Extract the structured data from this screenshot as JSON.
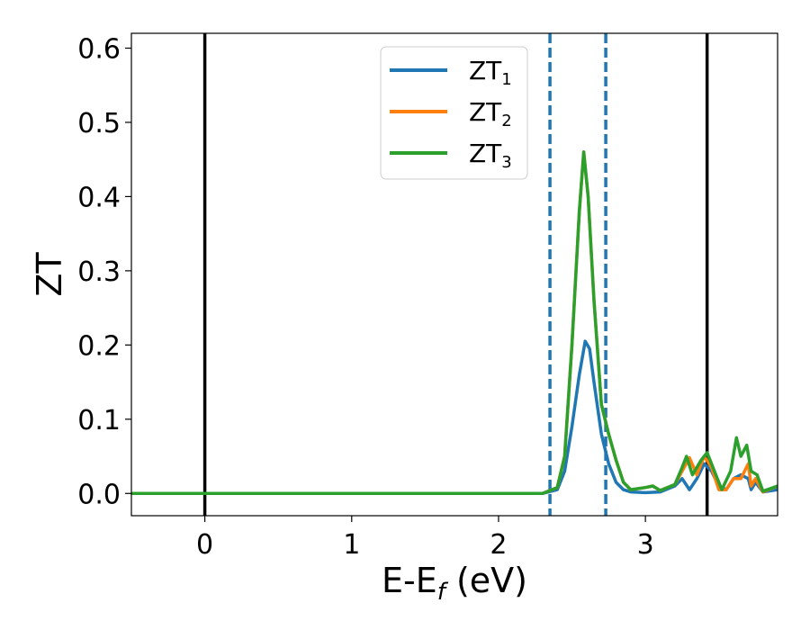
{
  "chart_data": {
    "type": "line",
    "xlabel": "E-E",
    "xlabel_subscript": "f",
    "xlabel_unit": "(eV)",
    "ylabel": "ZT",
    "xlim": [
      -0.5,
      3.9
    ],
    "ylim": [
      -0.03,
      0.62
    ],
    "xticks": [
      0,
      1,
      2,
      3
    ],
    "yticks": [
      0.0,
      0.1,
      0.2,
      0.3,
      0.4,
      0.5,
      0.6
    ],
    "ytick_labels": [
      "0.0",
      "0.1",
      "0.2",
      "0.3",
      "0.4",
      "0.5",
      "0.6"
    ],
    "legend_position": "top-center",
    "vertical_lines": [
      {
        "x": 0.0,
        "style": "solid",
        "color": "#000000"
      },
      {
        "x": 3.42,
        "style": "solid",
        "color": "#000000"
      },
      {
        "x": 2.35,
        "style": "dashed",
        "color": "#1f77b4"
      },
      {
        "x": 2.73,
        "style": "dashed",
        "color": "#1f77b4"
      }
    ],
    "series": [
      {
        "name": "ZT",
        "subscript": "1",
        "color": "#1f77b4",
        "points": [
          [
            -0.5,
            0
          ],
          [
            2.3,
            0
          ],
          [
            2.4,
            0.005
          ],
          [
            2.45,
            0.03
          ],
          [
            2.5,
            0.09
          ],
          [
            2.55,
            0.16
          ],
          [
            2.59,
            0.205
          ],
          [
            2.62,
            0.195
          ],
          [
            2.65,
            0.15
          ],
          [
            2.7,
            0.08
          ],
          [
            2.75,
            0.04
          ],
          [
            2.8,
            0.015
          ],
          [
            2.85,
            0.005
          ],
          [
            2.9,
            0.002
          ],
          [
            3.0,
            0.001
          ],
          [
            3.1,
            0.002
          ],
          [
            3.2,
            0.01
          ],
          [
            3.25,
            0.02
          ],
          [
            3.3,
            0.005
          ],
          [
            3.35,
            0.02
          ],
          [
            3.4,
            0.04
          ],
          [
            3.45,
            0.03
          ],
          [
            3.5,
            0.01
          ],
          [
            3.55,
            0.005
          ],
          [
            3.6,
            0.02
          ],
          [
            3.65,
            0.025
          ],
          [
            3.7,
            0.02
          ],
          [
            3.72,
            0.005
          ],
          [
            3.75,
            0.015
          ],
          [
            3.8,
            0.002
          ],
          [
            3.9,
            0.005
          ]
        ]
      },
      {
        "name": "ZT",
        "subscript": "2",
        "color": "#ff7f0e",
        "points": [
          [
            -0.5,
            0
          ],
          [
            2.3,
            0
          ],
          [
            2.4,
            0.008
          ],
          [
            2.45,
            0.05
          ],
          [
            2.5,
            0.2
          ],
          [
            2.55,
            0.38
          ],
          [
            2.58,
            0.46
          ],
          [
            2.61,
            0.4
          ],
          [
            2.65,
            0.26
          ],
          [
            2.7,
            0.12
          ],
          [
            2.75,
            0.08
          ],
          [
            2.8,
            0.045
          ],
          [
            2.85,
            0.015
          ],
          [
            2.9,
            0.005
          ],
          [
            3.0,
            0.008
          ],
          [
            3.05,
            0.01
          ],
          [
            3.1,
            0.004
          ],
          [
            3.2,
            0.012
          ],
          [
            3.25,
            0.03
          ],
          [
            3.3,
            0.048
          ],
          [
            3.35,
            0.025
          ],
          [
            3.4,
            0.05
          ],
          [
            3.45,
            0.035
          ],
          [
            3.5,
            0.005
          ],
          [
            3.55,
            0.005
          ],
          [
            3.6,
            0.02
          ],
          [
            3.65,
            0.02
          ],
          [
            3.7,
            0.04
          ],
          [
            3.72,
            0.01
          ],
          [
            3.75,
            0.02
          ],
          [
            3.8,
            0.002
          ],
          [
            3.9,
            0.01
          ]
        ]
      },
      {
        "name": "ZT",
        "subscript": "3",
        "color": "#2ca02c",
        "points": [
          [
            -0.5,
            0
          ],
          [
            2.3,
            0
          ],
          [
            2.4,
            0.008
          ],
          [
            2.45,
            0.05
          ],
          [
            2.5,
            0.2
          ],
          [
            2.55,
            0.38
          ],
          [
            2.58,
            0.46
          ],
          [
            2.61,
            0.4
          ],
          [
            2.65,
            0.26
          ],
          [
            2.7,
            0.12
          ],
          [
            2.75,
            0.08
          ],
          [
            2.8,
            0.045
          ],
          [
            2.85,
            0.015
          ],
          [
            2.9,
            0.005
          ],
          [
            3.0,
            0.008
          ],
          [
            3.05,
            0.01
          ],
          [
            3.1,
            0.004
          ],
          [
            3.2,
            0.012
          ],
          [
            3.25,
            0.035
          ],
          [
            3.28,
            0.05
          ],
          [
            3.32,
            0.025
          ],
          [
            3.38,
            0.045
          ],
          [
            3.42,
            0.055
          ],
          [
            3.47,
            0.03
          ],
          [
            3.52,
            0.005
          ],
          [
            3.58,
            0.03
          ],
          [
            3.62,
            0.075
          ],
          [
            3.65,
            0.05
          ],
          [
            3.69,
            0.065
          ],
          [
            3.72,
            0.03
          ],
          [
            3.76,
            0.025
          ],
          [
            3.8,
            0.003
          ],
          [
            3.9,
            0.01
          ]
        ]
      }
    ]
  }
}
